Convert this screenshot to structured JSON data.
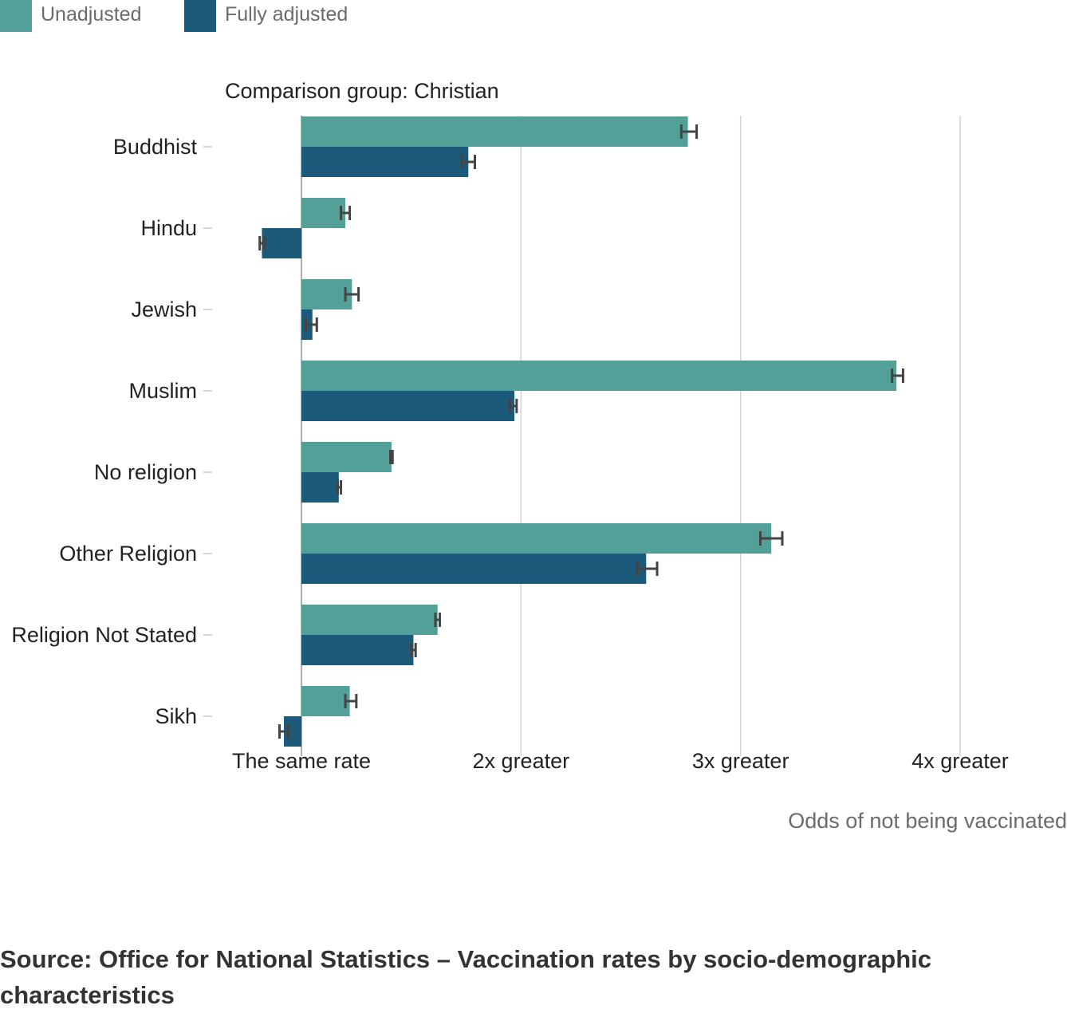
{
  "chart_data": {
    "type": "bar",
    "orientation": "horizontal",
    "subtitle": "Comparison group: Christian",
    "xlabel": "Odds of not being vaccinated",
    "xlim": [
      0.82,
      4.6
    ],
    "x_ticks": [
      {
        "value": 1,
        "label": "The same rate"
      },
      {
        "value": 2,
        "label": "2x greater"
      },
      {
        "value": 3,
        "label": "3x greater"
      },
      {
        "value": 4,
        "label": "4x greater"
      }
    ],
    "grid": "vertical",
    "legend_position": "top-left",
    "categories": [
      "Buddhist",
      "Hindu",
      "Jewish",
      "Muslim",
      "No religion",
      "Other Religion",
      "Religion Not Stated",
      "Sikh"
    ],
    "series": [
      {
        "name": "Unadjusted",
        "color": "#52a098",
        "values": [
          2.76,
          1.2,
          1.23,
          3.71,
          1.41,
          3.14,
          1.62,
          1.22
        ],
        "ci_low": [
          2.73,
          1.18,
          1.2,
          3.69,
          1.405,
          3.09,
          1.61,
          1.2
        ],
        "ci_high": [
          2.8,
          1.22,
          1.26,
          3.74,
          1.415,
          3.19,
          1.63,
          1.25
        ]
      },
      {
        "name": "Fully adjusted",
        "color": "#1b5a7a",
        "values": [
          1.76,
          0.82,
          1.05,
          1.97,
          1.17,
          2.57,
          1.51,
          0.92
        ],
        "ci_low": [
          1.73,
          0.81,
          1.02,
          1.95,
          1.165,
          2.53,
          1.5,
          0.9
        ],
        "ci_high": [
          1.79,
          0.83,
          1.07,
          1.98,
          1.18,
          2.62,
          1.52,
          0.94
        ]
      }
    ]
  },
  "source": "Source: Office for National Statistics – Vaccination rates by socio-demographic characteristics"
}
